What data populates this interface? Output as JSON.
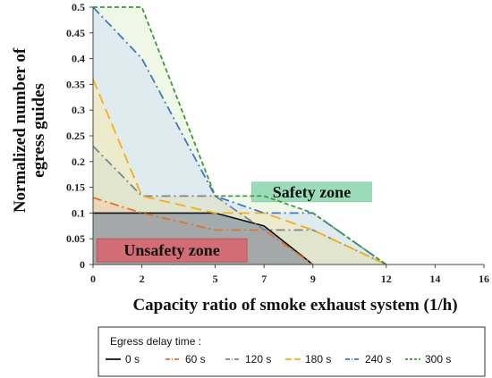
{
  "chart_data": {
    "type": "area",
    "title": "",
    "xlabel": "Capacity ratio of smoke exhaust system (1/h)",
    "ylabel": "Normalized number of egress guides",
    "xlim": [
      0,
      16
    ],
    "ylim": [
      0,
      0.5
    ],
    "x_ticks": [
      "0",
      "2",
      "5",
      "7",
      "9",
      "12",
      "14",
      "16"
    ],
    "y_ticks": [
      "0",
      "0.05",
      "0.1",
      "0.15",
      "0.2",
      "0.25",
      "0.3",
      "0.35",
      "0.4",
      "0.45",
      "0.5"
    ],
    "x_tick_values": [
      0,
      2,
      5,
      7,
      9,
      12,
      14,
      16
    ],
    "grid": false,
    "legend": {
      "title": "Egress delay time :",
      "position": "bottom"
    },
    "series": [
      {
        "name": "0 s",
        "color": "#111111",
        "dash": "solid",
        "fill": "#8c98a4",
        "points": [
          [
            0,
            0.1
          ],
          [
            2,
            0.1
          ],
          [
            5,
            0.1
          ],
          [
            7,
            0.075
          ],
          [
            9,
            0.0
          ]
        ]
      },
      {
        "name": "60 s",
        "color": "#e0732a",
        "dash": "dashdot",
        "fill": "#f2d2b0",
        "points": [
          [
            0,
            0.13
          ],
          [
            2,
            0.1
          ],
          [
            5,
            0.067
          ],
          [
            7,
            0.067
          ],
          [
            9,
            0.0
          ]
        ]
      },
      {
        "name": "120 s",
        "color": "#7a8590",
        "dash": "dashdot",
        "fill": "#dde3cc",
        "points": [
          [
            0,
            0.23
          ],
          [
            2,
            0.133
          ],
          [
            5,
            0.133
          ],
          [
            7,
            0.067
          ],
          [
            9,
            0.067
          ],
          [
            12,
            0.0
          ]
        ]
      },
      {
        "name": "180 s",
        "color": "#f2b01a",
        "dash": "longdash",
        "fill": "#f3ebc2",
        "points": [
          [
            0,
            0.36
          ],
          [
            2,
            0.133
          ],
          [
            5,
            0.1
          ],
          [
            7,
            0.1
          ],
          [
            9,
            0.067
          ],
          [
            12,
            0.0
          ]
        ]
      },
      {
        "name": "240 s",
        "color": "#3f78c4",
        "dash": "dashdot",
        "fill": "#dbe7f1",
        "points": [
          [
            0,
            0.5
          ],
          [
            2,
            0.4
          ],
          [
            5,
            0.133
          ],
          [
            7,
            0.1
          ],
          [
            9,
            0.1
          ],
          [
            12,
            0.0
          ]
        ]
      },
      {
        "name": "300 s",
        "color": "#3a9a3a",
        "dash": "shortdash",
        "fill": "#e9f4df",
        "points": [
          [
            0,
            0.5
          ],
          [
            2,
            0.5
          ],
          [
            5,
            0.133
          ],
          [
            7,
            0.133
          ],
          [
            9,
            0.1
          ],
          [
            12,
            0.0
          ]
        ]
      }
    ],
    "annotations": [
      {
        "text": "Safety zone",
        "fill": "#8fd8b2",
        "x_range": [
          6.5,
          11.4
        ],
        "y_range": [
          0.122,
          0.16
        ]
      },
      {
        "text": "Unsafety zone",
        "fill": "#d9636d",
        "x_range": [
          0.15,
          6.3
        ],
        "y_range": [
          0.005,
          0.05
        ]
      }
    ]
  }
}
